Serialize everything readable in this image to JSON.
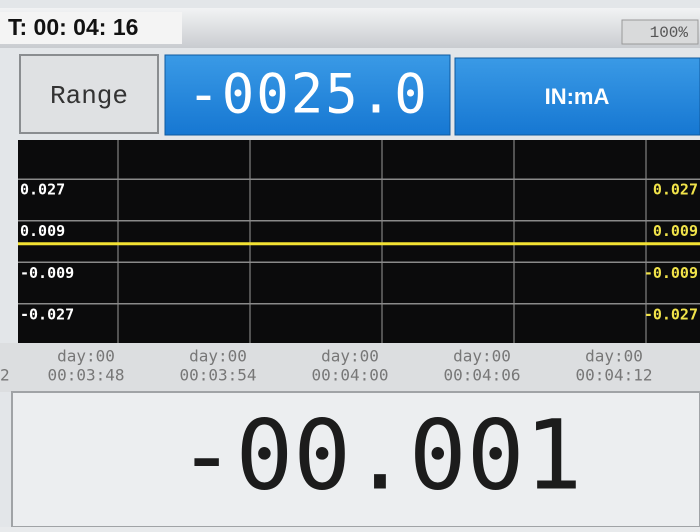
{
  "header": {
    "timer": "T: 00: 04: 16",
    "battery": "100%"
  },
  "controls": {
    "range_button": "Range",
    "display_value": "-0025.0",
    "mode": "IN:mA"
  },
  "chart": {
    "ylim": [
      -0.044,
      0.044
    ],
    "yticks": [
      0.027,
      0.009,
      -0.009,
      -0.027
    ],
    "x_label_partial": "2",
    "x_labels": [
      {
        "day": "day:00",
        "time": "00:03:48"
      },
      {
        "day": "day:00",
        "time": "00:03:54"
      },
      {
        "day": "day:00",
        "time": "00:04:00"
      },
      {
        "day": "day:00",
        "time": "00:04:06"
      },
      {
        "day": "day:00",
        "time": "00:04:12"
      }
    ],
    "trend": [
      -0.001,
      -0.001,
      -0.001,
      -0.001,
      -0.001,
      -0.001
    ]
  },
  "readout": {
    "value": "-00.001"
  }
}
